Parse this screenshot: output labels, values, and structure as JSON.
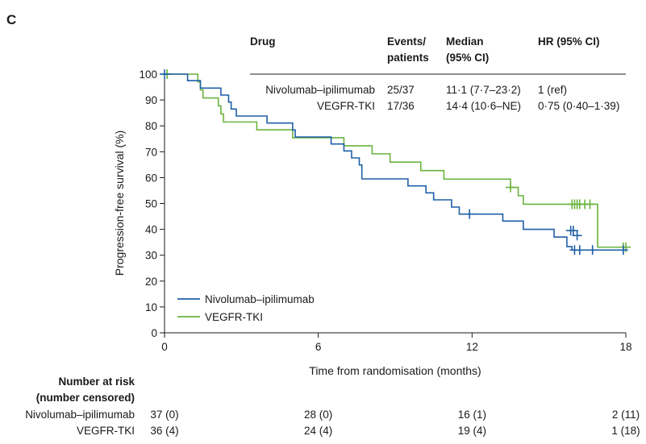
{
  "panel_label": "C",
  "table": {
    "headers": [
      {
        "key": "drug",
        "lines": [
          "Drug"
        ]
      },
      {
        "key": "events",
        "lines": [
          "Events/",
          "patients"
        ]
      },
      {
        "key": "median",
        "lines": [
          "Median",
          "(95% CI)"
        ]
      },
      {
        "key": "hr",
        "lines": [
          "HR (95% CI)"
        ]
      }
    ],
    "rows": [
      {
        "drug": "Nivolumab–ipilimumab",
        "events": "25/37",
        "median": "11·1 (7·7–23·2)",
        "hr": "1 (ref)"
      },
      {
        "drug": "VEGFR-TKI",
        "events": "17/36",
        "median": "14·4 (10·6–NE)",
        "hr": "0·75 (0·40–1·39)"
      }
    ]
  },
  "risk": {
    "heading": [
      "Number at risk",
      "(number censored)"
    ],
    "rows": [
      {
        "label": "Nivolumab–ipilimumab",
        "values": [
          "37 (0)",
          "28 (0)",
          "16 (1)",
          "2 (11)"
        ]
      },
      {
        "label": "VEGFR-TKI",
        "values": [
          "36 (4)",
          "24 (4)",
          "19 (4)",
          "1 (18)"
        ]
      }
    ]
  },
  "chart_data": {
    "type": "line",
    "title": "",
    "xlabel": "Time from randomisation (months)",
    "ylabel": "Progression-free survival (%)",
    "xlim": [
      0,
      18
    ],
    "ylim": [
      0,
      100
    ],
    "xticks": [
      0,
      6,
      12,
      18
    ],
    "yticks": [
      0,
      10,
      20,
      30,
      40,
      50,
      60,
      70,
      80,
      90,
      100
    ],
    "legend_position": "bottom-left",
    "grid": false,
    "series": [
      {
        "name": "Nivolumab–ipilimumab",
        "color": "#1f5fa6",
        "steps": [
          [
            0,
            100
          ],
          [
            0.9,
            97.5
          ],
          [
            1.4,
            94.6
          ],
          [
            2.2,
            91.9
          ],
          [
            2.5,
            89.2
          ],
          [
            2.6,
            86.5
          ],
          [
            2.8,
            83.8
          ],
          [
            4.0,
            81.1
          ],
          [
            5.0,
            78.4
          ],
          [
            5.1,
            75.7
          ],
          [
            6.5,
            73.0
          ],
          [
            7.0,
            70.3
          ],
          [
            7.3,
            67.6
          ],
          [
            7.6,
            64.9
          ],
          [
            7.7,
            59.5
          ],
          [
            9.5,
            56.8
          ],
          [
            10.2,
            54.1
          ],
          [
            10.5,
            51.4
          ],
          [
            11.2,
            48.6
          ],
          [
            11.5,
            45.9
          ],
          [
            13.2,
            43.2
          ],
          [
            14.0,
            40.0
          ],
          [
            15.2,
            37.0
          ],
          [
            15.7,
            33.3
          ],
          [
            15.9,
            32.0
          ],
          [
            18,
            32.0
          ]
        ],
        "censors": [
          [
            0,
            100
          ],
          [
            11.9,
            45.9
          ],
          [
            15.85,
            39.5
          ],
          [
            15.95,
            39.5
          ],
          [
            16.1,
            37.6
          ],
          [
            16.0,
            32.0
          ],
          [
            16.2,
            32.0
          ],
          [
            16.7,
            32.0
          ],
          [
            17.9,
            32.0
          ]
        ]
      },
      {
        "name": "VEGFR-TKI",
        "color": "#6ab43e",
        "steps": [
          [
            0,
            100
          ],
          [
            1.3,
            97.0
          ],
          [
            1.4,
            93.9
          ],
          [
            1.5,
            90.8
          ],
          [
            2.1,
            87.7
          ],
          [
            2.2,
            84.6
          ],
          [
            2.3,
            81.5
          ],
          [
            3.6,
            78.5
          ],
          [
            5.0,
            75.4
          ],
          [
            7.0,
            72.3
          ],
          [
            8.1,
            69.2
          ],
          [
            8.8,
            66.0
          ],
          [
            10.0,
            62.7
          ],
          [
            10.9,
            59.4
          ],
          [
            13.5,
            56.2
          ],
          [
            13.8,
            53.0
          ],
          [
            14.0,
            49.7
          ],
          [
            16.7,
            49.7
          ],
          [
            16.9,
            33.1
          ],
          [
            18,
            33.1
          ]
        ],
        "censors": [
          [
            0.1,
            100
          ],
          [
            13.5,
            56.2
          ],
          [
            15.9,
            49.7
          ],
          [
            16.0,
            49.7
          ],
          [
            16.1,
            49.7
          ],
          [
            16.2,
            49.7
          ],
          [
            16.4,
            49.7
          ],
          [
            16.6,
            49.7
          ],
          [
            17.9,
            33.1
          ],
          [
            18.0,
            33.1
          ]
        ]
      }
    ]
  }
}
